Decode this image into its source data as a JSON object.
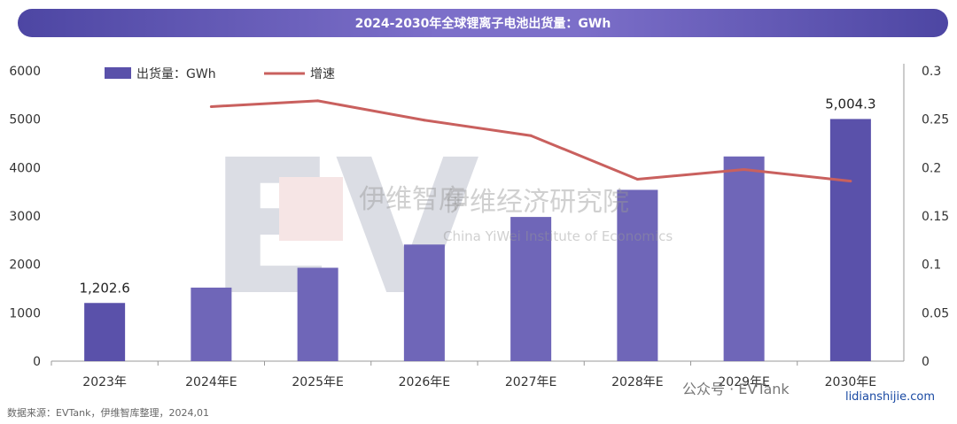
{
  "header": {
    "title": "2024-2030年全球锂离子电池出货量：GWh"
  },
  "footer": {
    "source": "数据来源：EVTank，伊维智库整理，2024,01"
  },
  "watermark": {
    "org_cn": "伊维智库",
    "org_full": "伊维经济研究院",
    "org_en": "China YiWei Institute of Economics",
    "social": "公众号 · EVTank",
    "site": "lidianshijie.com"
  },
  "colors": {
    "bar": "#5a51aa",
    "line": "#c9605e",
    "axis": "#999999"
  },
  "chart_data": {
    "type": "bar",
    "categories": [
      "2023年",
      "2024年E",
      "2025年E",
      "2026年E",
      "2027年E",
      "2028年E",
      "2029年E",
      "2030年E"
    ],
    "series": [
      {
        "name": "出货量：GWh",
        "type": "bar",
        "axis": "left",
        "values": [
          1202.6,
          1520,
          1930,
          2410,
          2980,
          3540,
          4230,
          5004.3
        ]
      },
      {
        "name": "增速",
        "type": "line",
        "axis": "right",
        "values": [
          null,
          0.263,
          0.269,
          0.249,
          0.233,
          0.188,
          0.198,
          0.186
        ]
      }
    ],
    "data_labels": [
      "1,202.6",
      "",
      "",
      "",
      "",
      "",
      "",
      "5,004.3"
    ],
    "ylim_left": [
      0,
      6000
    ],
    "yticks_left": [
      "0",
      "1000",
      "2000",
      "3000",
      "4000",
      "5000",
      "6000"
    ],
    "ylim_right": [
      0,
      0.3
    ],
    "yticks_right": [
      "0",
      "0.05",
      "0.1",
      "0.15",
      "0.2",
      "0.25",
      "0.3"
    ],
    "legend": "top-left",
    "grid": false
  }
}
